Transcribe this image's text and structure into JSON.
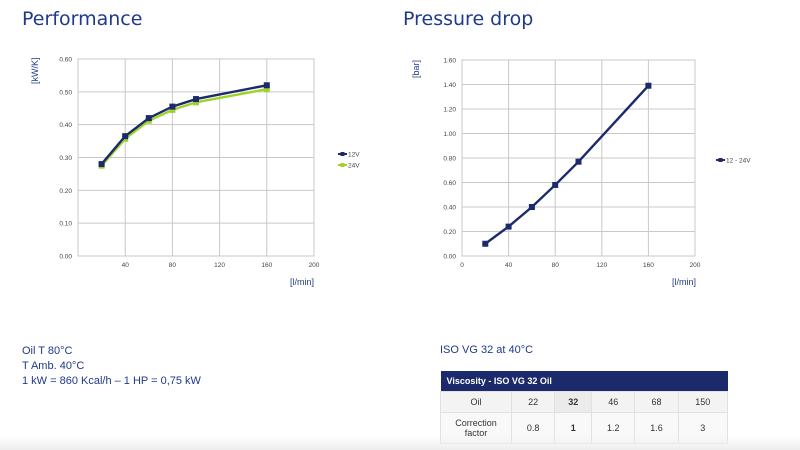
{
  "performance": {
    "title": "Performance"
  },
  "pressure_drop": {
    "title": "Pressure drop"
  },
  "notes": [
    "Oil T 80°C",
    "T Amb. 40°C",
    "1 kW = 860 Kcal/h – 1 HP = 0,75 kW"
  ],
  "viscosity_condition": "ISO VG 32 at 40°C",
  "viscosity_table": {
    "header": "Viscosity - ISO VG 32 Oil",
    "rows": [
      {
        "label": "Oil",
        "values": [
          "22",
          "32",
          "46",
          "68",
          "150"
        ]
      },
      {
        "label": "Correction factor",
        "values": [
          "0.8",
          "1",
          "1.2",
          "1.6",
          "3"
        ]
      }
    ],
    "bold_column": 1
  },
  "colors": {
    "navy": "#1c2a6b",
    "lime": "#9fd32a",
    "grid": "#c8c8c8"
  },
  "chart_data": [
    {
      "type": "line",
      "title": "Performance",
      "ylabel": "[kW/K]",
      "xlabel": "[l/min]",
      "xlim": [
        0,
        200
      ],
      "ylim": [
        0,
        0.6
      ],
      "xticks": [
        0,
        40,
        80,
        120,
        160,
        200
      ],
      "yticks": [
        0.0,
        0.1,
        0.2,
        0.3,
        0.4,
        0.5,
        0.6
      ],
      "xtick_labels": [
        "",
        "40",
        "80",
        "120",
        "160",
        "200"
      ],
      "ytick_labels": [
        "0.00",
        "0.10",
        "0.20",
        "0.30",
        "0.40",
        "0.50",
        "0.60"
      ],
      "grid": true,
      "legend": "right",
      "series": [
        {
          "name": "12V",
          "color": "#1c2a6b",
          "x": [
            20,
            40,
            60,
            80,
            100,
            160
          ],
          "y": [
            0.28,
            0.365,
            0.42,
            0.455,
            0.478,
            0.52
          ]
        },
        {
          "name": "24V",
          "color": "#9fd32a",
          "x": [
            20,
            40,
            60,
            80,
            100,
            160
          ],
          "y": [
            0.275,
            0.357,
            0.412,
            0.445,
            0.468,
            0.508
          ]
        }
      ]
    },
    {
      "type": "line",
      "title": "Pressure drop",
      "ylabel": "[bar]",
      "xlabel": "[l/min]",
      "xlim": [
        0,
        200
      ],
      "ylim": [
        0,
        1.6
      ],
      "xticks": [
        0,
        40,
        80,
        120,
        160,
        200
      ],
      "yticks": [
        0,
        0.2,
        0.4,
        0.6,
        0.8,
        1.0,
        1.2,
        1.4,
        1.6
      ],
      "xtick_labels": [
        "0",
        "40",
        "80",
        "120",
        "160",
        "200"
      ],
      "ytick_labels": [
        "0.00",
        "0.20",
        "0.40",
        "0.60",
        "0.80",
        "1.00",
        "1.20",
        "1.40",
        "1.60"
      ],
      "grid": true,
      "legend": "right",
      "series": [
        {
          "name": "12 - 24V",
          "color": "#1c2a6b",
          "x": [
            20,
            40,
            60,
            80,
            100,
            160
          ],
          "y": [
            0.1,
            0.24,
            0.4,
            0.58,
            0.77,
            1.39
          ]
        }
      ]
    }
  ]
}
